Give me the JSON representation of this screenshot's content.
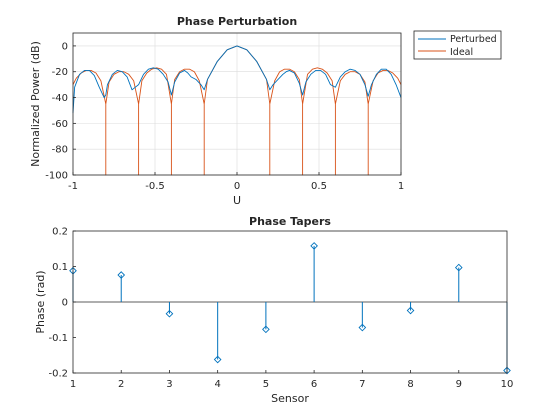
{
  "chart_data": [
    {
      "type": "line",
      "title": "Phase Perturbation",
      "xlabel": "U",
      "ylabel": "Normalized Power (dB)",
      "xlim": [
        -1,
        1
      ],
      "ylim": [
        -100,
        10
      ],
      "xticks": [
        -1,
        -0.5,
        0,
        0.5,
        1
      ],
      "xtick_labels": [
        "-1",
        "-0.5",
        "0",
        "0.5",
        "1"
      ],
      "yticks": [
        0,
        -20,
        -40,
        -60,
        -80,
        -100
      ],
      "ytick_labels": [
        "0",
        "-20",
        "-40",
        "-60",
        "-80",
        "-100"
      ],
      "grid": true,
      "legend_position": "outside top-right",
      "series": [
        {
          "name": "Perturbed",
          "color": "#0072bd",
          "x": [
            -1.0,
            -0.99,
            -0.96,
            -0.93,
            -0.9,
            -0.87,
            -0.84,
            -0.81,
            -0.8,
            -0.79,
            -0.76,
            -0.73,
            -0.7,
            -0.67,
            -0.64,
            -0.6,
            -0.57,
            -0.54,
            -0.51,
            -0.48,
            -0.45,
            -0.42,
            -0.4,
            -0.38,
            -0.35,
            -0.32,
            -0.3,
            -0.28,
            -0.25,
            -0.22,
            -0.2,
            -0.18,
            -0.12,
            -0.06,
            0.0,
            0.06,
            0.12,
            0.18,
            0.2,
            0.22,
            0.25,
            0.28,
            0.3,
            0.32,
            0.35,
            0.38,
            0.4,
            0.42,
            0.45,
            0.48,
            0.51,
            0.54,
            0.57,
            0.6,
            0.63,
            0.66,
            0.69,
            0.72,
            0.75,
            0.78,
            0.8,
            0.82,
            0.85,
            0.88,
            0.91,
            0.94,
            0.97,
            1.0
          ],
          "y": [
            -52,
            -32,
            -22,
            -19,
            -19,
            -23,
            -32,
            -40,
            -38,
            -30,
            -22,
            -19,
            -20,
            -24,
            -34,
            -30,
            -22,
            -18,
            -17,
            -18,
            -22,
            -28,
            -38,
            -28,
            -21,
            -19,
            -21,
            -24,
            -26,
            -30,
            -34,
            -26,
            -12,
            -3,
            0,
            -3,
            -12,
            -26,
            -34,
            -30,
            -26,
            -22,
            -20,
            -19,
            -21,
            -29,
            -38,
            -28,
            -22,
            -19,
            -19,
            -22,
            -30,
            -32,
            -24,
            -20,
            -18,
            -19,
            -22,
            -30,
            -39,
            -30,
            -22,
            -18,
            -18,
            -22,
            -30,
            -40
          ]
        },
        {
          "name": "Ideal",
          "color": "#d95319",
          "x": [
            -1.0,
            -0.98,
            -0.95,
            -0.92,
            -0.89,
            -0.86,
            -0.83,
            -0.8,
            -0.8,
            -0.8,
            -0.78,
            -0.75,
            -0.72,
            -0.69,
            -0.66,
            -0.63,
            -0.6,
            -0.6,
            -0.6,
            -0.58,
            -0.55,
            -0.52,
            -0.49,
            -0.46,
            -0.43,
            -0.4,
            -0.4,
            -0.4,
            -0.38,
            -0.35,
            -0.32,
            -0.29,
            -0.26,
            -0.23,
            -0.2,
            -0.2,
            -0.2,
            -0.18,
            -0.12,
            -0.06,
            0.0,
            0.06,
            0.12,
            0.18,
            0.2,
            0.2,
            0.2,
            0.23,
            0.26,
            0.29,
            0.32,
            0.35,
            0.38,
            0.4,
            0.4,
            0.4,
            0.43,
            0.46,
            0.49,
            0.52,
            0.55,
            0.58,
            0.6,
            0.6,
            0.6,
            0.63,
            0.66,
            0.69,
            0.72,
            0.75,
            0.78,
            0.8,
            0.8,
            0.8,
            0.83,
            0.86,
            0.89,
            0.92,
            0.95,
            0.98,
            1.0
          ],
          "y": [
            -30,
            -25,
            -21,
            -19,
            -19,
            -21,
            -27,
            -45,
            -100,
            -45,
            -28,
            -22,
            -20,
            -20,
            -22,
            -27,
            -45,
            -100,
            -45,
            -27,
            -21,
            -18,
            -17,
            -18,
            -22,
            -45,
            -100,
            -45,
            -26,
            -20,
            -18,
            -18,
            -20,
            -27,
            -45,
            -100,
            -45,
            -26,
            -12,
            -3,
            0,
            -3,
            -12,
            -26,
            -45,
            -100,
            -45,
            -27,
            -20,
            -18,
            -18,
            -20,
            -26,
            -45,
            -100,
            -45,
            -22,
            -18,
            -17,
            -18,
            -21,
            -27,
            -45,
            -100,
            -45,
            -27,
            -22,
            -20,
            -20,
            -22,
            -28,
            -45,
            -100,
            -45,
            -27,
            -21,
            -19,
            -19,
            -21,
            -25,
            -30
          ]
        }
      ]
    },
    {
      "type": "stem",
      "title": "Phase Tapers",
      "xlabel": "Sensor",
      "ylabel": "Phase (rad)",
      "xlim": [
        1,
        10
      ],
      "ylim": [
        -0.2,
        0.2
      ],
      "xticks": [
        1,
        2,
        3,
        4,
        5,
        6,
        7,
        8,
        9,
        10
      ],
      "xtick_labels": [
        "1",
        "2",
        "3",
        "4",
        "5",
        "6",
        "7",
        "8",
        "9",
        "10"
      ],
      "yticks": [
        0.2,
        0.1,
        0,
        -0.1,
        -0.2
      ],
      "ytick_labels": [
        "0.2",
        "0.1",
        "0",
        "-0.1",
        "-0.2"
      ],
      "grid": false,
      "marker": "diamond",
      "color": "#0072bd",
      "x": [
        1,
        2,
        3,
        4,
        5,
        6,
        7,
        8,
        9,
        10
      ],
      "y": [
        0.088,
        0.076,
        -0.033,
        -0.162,
        -0.077,
        0.158,
        -0.072,
        -0.024,
        0.097,
        -0.193
      ]
    }
  ]
}
